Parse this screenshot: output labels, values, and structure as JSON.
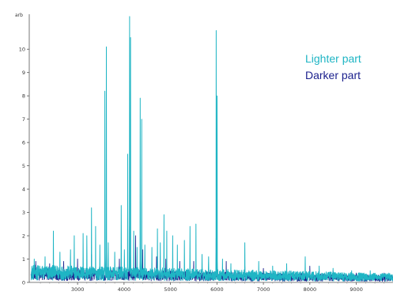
{
  "chart_data": {
    "type": "line",
    "title": "",
    "xlabel": "",
    "ylabel": "",
    "y_unit": "arb",
    "x_range": [
      2000,
      9800
    ],
    "ylim": [
      0,
      11.5
    ],
    "x_ticks": [
      3000,
      4000,
      5000,
      6000,
      7000,
      8000,
      9000
    ],
    "y_ticks": [
      0,
      1,
      2,
      3,
      4,
      5,
      6,
      7,
      8,
      9,
      10
    ],
    "grid": false,
    "legend_position": "top-right",
    "series": [
      {
        "name": "Lighter part",
        "color": "#1fb5c4",
        "peaks": [
          {
            "x": 2070,
            "y": 1.0
          },
          {
            "x": 2300,
            "y": 1.1
          },
          {
            "x": 2480,
            "y": 2.2
          },
          {
            "x": 2620,
            "y": 1.3
          },
          {
            "x": 2850,
            "y": 1.4
          },
          {
            "x": 2930,
            "y": 2.0
          },
          {
            "x": 3120,
            "y": 2.1
          },
          {
            "x": 3200,
            "y": 2.0
          },
          {
            "x": 3300,
            "y": 3.2
          },
          {
            "x": 3390,
            "y": 2.4
          },
          {
            "x": 3480,
            "y": 1.6
          },
          {
            "x": 3590,
            "y": 8.2
          },
          {
            "x": 3620,
            "y": 10.1
          },
          {
            "x": 3660,
            "y": 1.7
          },
          {
            "x": 3800,
            "y": 1.3
          },
          {
            "x": 3940,
            "y": 3.3
          },
          {
            "x": 4010,
            "y": 1.4
          },
          {
            "x": 4080,
            "y": 5.5
          },
          {
            "x": 4120,
            "y": 11.4
          },
          {
            "x": 4140,
            "y": 10.5
          },
          {
            "x": 4210,
            "y": 2.2
          },
          {
            "x": 4280,
            "y": 1.5
          },
          {
            "x": 4350,
            "y": 7.9
          },
          {
            "x": 4380,
            "y": 7.0
          },
          {
            "x": 4450,
            "y": 1.6
          },
          {
            "x": 4600,
            "y": 1.5
          },
          {
            "x": 4720,
            "y": 2.3
          },
          {
            "x": 4780,
            "y": 1.7
          },
          {
            "x": 4860,
            "y": 2.9
          },
          {
            "x": 4920,
            "y": 2.2
          },
          {
            "x": 5050,
            "y": 2.0
          },
          {
            "x": 5150,
            "y": 1.6
          },
          {
            "x": 5300,
            "y": 1.8
          },
          {
            "x": 5420,
            "y": 2.4
          },
          {
            "x": 5550,
            "y": 2.5
          },
          {
            "x": 5680,
            "y": 1.2
          },
          {
            "x": 5820,
            "y": 1.1
          },
          {
            "x": 5985,
            "y": 10.8
          },
          {
            "x": 6005,
            "y": 8.0
          },
          {
            "x": 6120,
            "y": 1.0
          },
          {
            "x": 6300,
            "y": 0.8
          },
          {
            "x": 6600,
            "y": 1.7
          },
          {
            "x": 6900,
            "y": 0.9
          },
          {
            "x": 7200,
            "y": 0.7
          },
          {
            "x": 7500,
            "y": 0.8
          },
          {
            "x": 7900,
            "y": 1.1
          },
          {
            "x": 8200,
            "y": 0.7
          },
          {
            "x": 8500,
            "y": 0.6
          },
          {
            "x": 8900,
            "y": 0.5
          },
          {
            "x": 9300,
            "y": 0.5
          },
          {
            "x": 9700,
            "y": 0.4
          }
        ],
        "baseline": 0.5
      },
      {
        "name": "Darker part",
        "color": "#1a1f8c",
        "peaks": [
          {
            "x": 2100,
            "y": 0.9
          },
          {
            "x": 2400,
            "y": 0.8
          },
          {
            "x": 2700,
            "y": 0.9
          },
          {
            "x": 3000,
            "y": 1.0
          },
          {
            "x": 3300,
            "y": 1.2
          },
          {
            "x": 3620,
            "y": 1.5
          },
          {
            "x": 3900,
            "y": 1.0
          },
          {
            "x": 4120,
            "y": 2.4
          },
          {
            "x": 4250,
            "y": 2.0
          },
          {
            "x": 4400,
            "y": 1.4
          },
          {
            "x": 4700,
            "y": 1.1
          },
          {
            "x": 4900,
            "y": 1.0
          },
          {
            "x": 5200,
            "y": 0.9
          },
          {
            "x": 5500,
            "y": 0.9
          },
          {
            "x": 5985,
            "y": 1.9
          },
          {
            "x": 6200,
            "y": 0.9
          },
          {
            "x": 6600,
            "y": 0.7
          },
          {
            "x": 7000,
            "y": 0.6
          },
          {
            "x": 7500,
            "y": 0.6
          },
          {
            "x": 8000,
            "y": 0.7
          },
          {
            "x": 8500,
            "y": 0.5
          },
          {
            "x": 9000,
            "y": 0.4
          },
          {
            "x": 9600,
            "y": 0.4
          }
        ],
        "baseline": 0.4
      }
    ]
  }
}
